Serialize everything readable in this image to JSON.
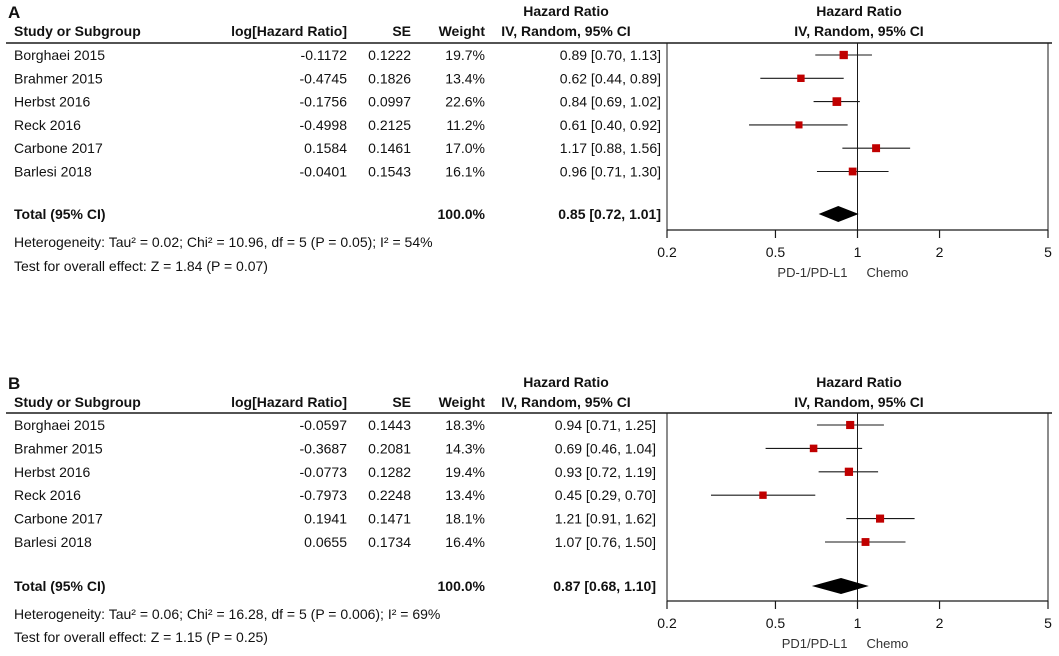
{
  "colors": {
    "marker": "#c00000",
    "line": "#1a1a1a",
    "text": "#111111",
    "background": "#ffffff"
  },
  "chart_data": [
    {
      "type": "forest",
      "panel_label": "A",
      "title": "Hazard Ratio",
      "columns": {
        "study": "Study or Subgroup",
        "log_hr": "log[Hazard Ratio]",
        "se": "SE",
        "weight": "Weight",
        "hr_header": "Hazard Ratio",
        "hr_sub": "IV, Random, 95% CI",
        "plot_header": "Hazard Ratio",
        "plot_sub": "IV, Random, 95% CI"
      },
      "studies": [
        {
          "name": "Borghaei 2015",
          "log_hr": "-0.1172",
          "se": "0.1222",
          "weight": "19.7%",
          "ci_text": "0.89 [0.70, 1.13]",
          "hr": 0.89,
          "lo": 0.7,
          "hi": 1.13,
          "w": 19.7
        },
        {
          "name": "Brahmer 2015",
          "log_hr": "-0.4745",
          "se": "0.1826",
          "weight": "13.4%",
          "ci_text": "0.62 [0.44, 0.89]",
          "hr": 0.62,
          "lo": 0.44,
          "hi": 0.89,
          "w": 13.4
        },
        {
          "name": "Herbst 2016",
          "log_hr": "-0.1756",
          "se": "0.0997",
          "weight": "22.6%",
          "ci_text": "0.84 [0.69, 1.02]",
          "hr": 0.84,
          "lo": 0.69,
          "hi": 1.02,
          "w": 22.6
        },
        {
          "name": "Reck 2016",
          "log_hr": "-0.4998",
          "se": "0.2125",
          "weight": "11.2%",
          "ci_text": "0.61 [0.40, 0.92]",
          "hr": 0.61,
          "lo": 0.4,
          "hi": 0.92,
          "w": 11.2
        },
        {
          "name": "Carbone 2017",
          "log_hr": "0.1584",
          "se": "0.1461",
          "weight": "17.0%",
          "ci_text": "1.17 [0.88, 1.56]",
          "hr": 1.17,
          "lo": 0.88,
          "hi": 1.56,
          "w": 17.0
        },
        {
          "name": "Barlesi 2018",
          "log_hr": "-0.0401",
          "se": "0.1543",
          "weight": "16.1%",
          "ci_text": "0.96 [0.71, 1.30]",
          "hr": 0.96,
          "lo": 0.71,
          "hi": 1.3,
          "w": 16.1
        }
      ],
      "total": {
        "label": "Total (95% CI)",
        "weight": "100.0%",
        "ci_text": "0.85 [0.72, 1.01]",
        "hr": 0.85,
        "lo": 0.72,
        "hi": 1.01
      },
      "heterogeneity": "Heterogeneity: Tau² = 0.02; Chi² = 10.96, df = 5 (P = 0.05); I² = 54%",
      "overall_effect": "Test for overall effect: Z = 1.84 (P = 0.07)",
      "x_scale": "log",
      "xlim": [
        0.2,
        5
      ],
      "ticks": [
        0.2,
        0.5,
        1,
        2,
        5
      ],
      "tick_labels": [
        "0.2",
        "0.5",
        "1",
        "2",
        "5"
      ],
      "favours_left": "PD-1/PD-L1",
      "favours_right": "Chemo"
    },
    {
      "type": "forest",
      "panel_label": "B",
      "title": "Hazard Ratio",
      "columns": {
        "study": "Study or Subgroup",
        "log_hr": "log[Hazard Ratio]",
        "se": "SE",
        "weight": "Weight",
        "hr_header": "Hazard Ratio",
        "hr_sub": "IV, Random, 95% CI",
        "plot_header": "Hazard Ratio",
        "plot_sub": "IV, Random, 95% CI"
      },
      "studies": [
        {
          "name": "Borghaei 2015",
          "log_hr": "-0.0597",
          "se": "0.1443",
          "weight": "18.3%",
          "ci_text": "0.94 [0.71, 1.25]",
          "hr": 0.94,
          "lo": 0.71,
          "hi": 1.25,
          "w": 18.3
        },
        {
          "name": "Brahmer 2015",
          "log_hr": "-0.3687",
          "se": "0.2081",
          "weight": "14.3%",
          "ci_text": "0.69 [0.46, 1.04]",
          "hr": 0.69,
          "lo": 0.46,
          "hi": 1.04,
          "w": 14.3
        },
        {
          "name": "Herbst 2016",
          "log_hr": "-0.0773",
          "se": "0.1282",
          "weight": "19.4%",
          "ci_text": "0.93 [0.72, 1.19]",
          "hr": 0.93,
          "lo": 0.72,
          "hi": 1.19,
          "w": 19.4
        },
        {
          "name": "Reck 2016",
          "log_hr": "-0.7973",
          "se": "0.2248",
          "weight": "13.4%",
          "ci_text": "0.45 [0.29, 0.70]",
          "hr": 0.45,
          "lo": 0.29,
          "hi": 0.7,
          "w": 13.4
        },
        {
          "name": "Carbone 2017",
          "log_hr": "0.1941",
          "se": "0.1471",
          "weight": "18.1%",
          "ci_text": "1.21 [0.91, 1.62]",
          "hr": 1.21,
          "lo": 0.91,
          "hi": 1.62,
          "w": 18.1
        },
        {
          "name": "Barlesi 2018",
          "log_hr": "0.0655",
          "se": "0.1734",
          "weight": "16.4%",
          "ci_text": "1.07 [0.76, 1.50]",
          "hr": 1.07,
          "lo": 0.76,
          "hi": 1.5,
          "w": 16.4
        }
      ],
      "total": {
        "label": "Total (95% CI)",
        "weight": "100.0%",
        "ci_text": "0.87 [0.68, 1.10]",
        "hr": 0.87,
        "lo": 0.68,
        "hi": 1.1
      },
      "heterogeneity": "Heterogeneity: Tau² = 0.06; Chi² = 16.28, df = 5 (P = 0.006); I² = 69%",
      "overall_effect": "Test for overall effect: Z = 1.15 (P = 0.25)",
      "x_scale": "log",
      "xlim": [
        0.2,
        5
      ],
      "ticks": [
        0.2,
        0.5,
        1,
        2,
        5
      ],
      "tick_labels": [
        "0.2",
        "0.5",
        "1",
        "2",
        "5"
      ],
      "favours_left": "PD1/PD-L1",
      "favours_right": "Chemo"
    }
  ]
}
